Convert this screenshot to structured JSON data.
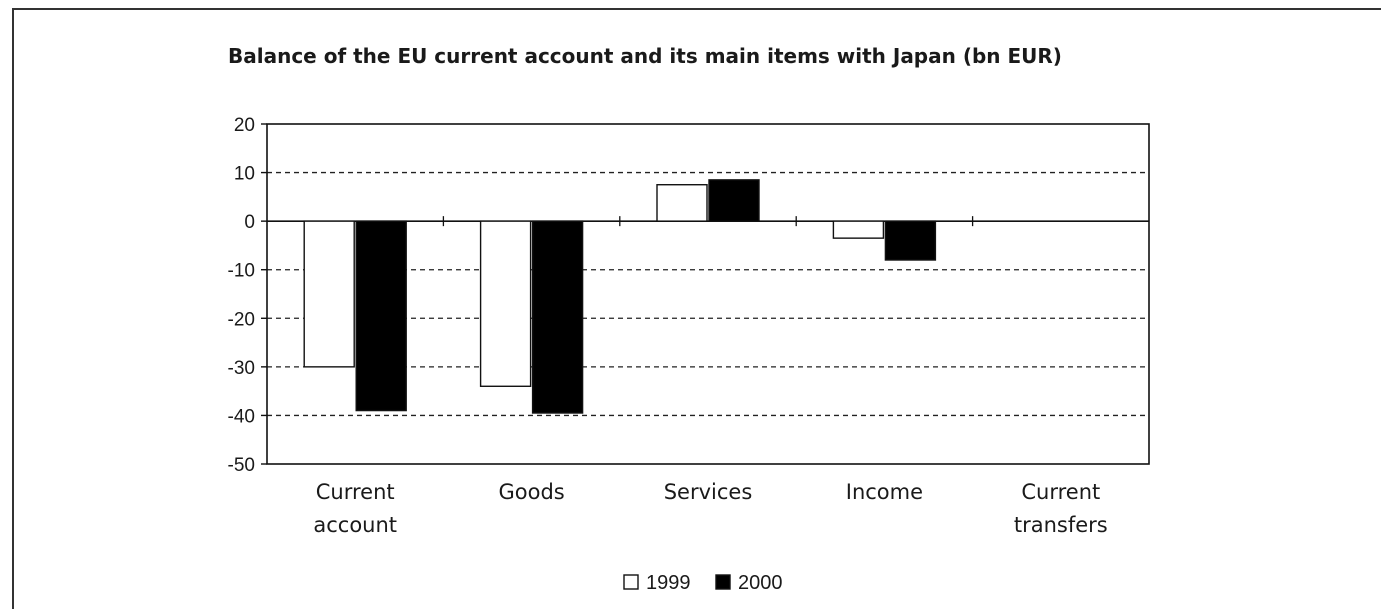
{
  "chart_data": {
    "type": "bar",
    "title": "Balance of the EU current account and its main items with Japan (bn EUR)",
    "categories": [
      [
        "Current",
        "account"
      ],
      [
        "Goods"
      ],
      [
        "Services"
      ],
      [
        "Income"
      ],
      [
        "Current",
        "transfers"
      ]
    ],
    "series": [
      {
        "name": "1999",
        "values": [
          -30,
          -34,
          7.5,
          -3.5,
          0
        ],
        "color": "#ffffff"
      },
      {
        "name": "2000",
        "values": [
          -39,
          -39.5,
          8.5,
          -8,
          0
        ],
        "color": "#000000"
      }
    ],
    "ylim": [
      -50,
      20
    ],
    "yticks": [
      "20",
      "10",
      "0",
      "-10",
      "-20",
      "-30",
      "-40",
      "-50"
    ],
    "ytick_values": [
      20,
      10,
      0,
      -10,
      -20,
      -30,
      -40,
      -50
    ],
    "grid": "dashed",
    "legend_position": "bottom-center"
  }
}
